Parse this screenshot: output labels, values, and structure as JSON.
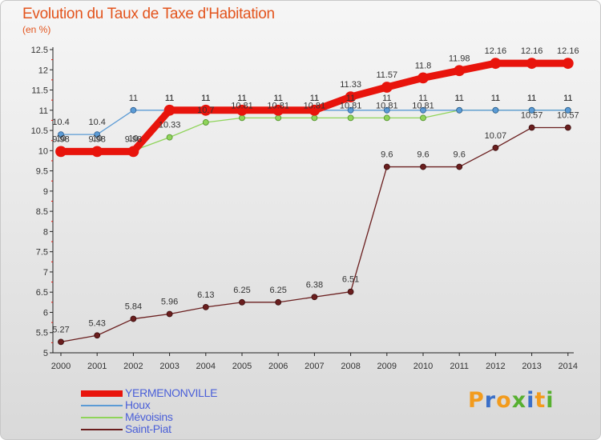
{
  "chart_data": {
    "type": "line",
    "title": "Evolution du Taux de Taxe d'Habitation",
    "subtitle": "(en %)",
    "x": [
      "2000",
      "2001",
      "2002",
      "2003",
      "2004",
      "2005",
      "2006",
      "2007",
      "2008",
      "2009",
      "2010",
      "2011",
      "2012",
      "2013",
      "2014"
    ],
    "ylim": [
      5,
      12.5
    ],
    "yticks": [
      "5",
      "5.5",
      "6",
      "6.5",
      "7",
      "7.5",
      "8",
      "8.5",
      "9",
      "9.5",
      "10",
      "10.5",
      "11",
      "11.5",
      "12",
      "12.5"
    ],
    "grid": false,
    "legend_position": "bottom-left",
    "series": [
      {
        "name": "YERMENONVILLE",
        "color": "#e8140c",
        "values": [
          9.98,
          9.98,
          9.98,
          11,
          11,
          11,
          11,
          11,
          11.33,
          11.57,
          11.8,
          11.98,
          12.16,
          12.16,
          12.16
        ],
        "labels": [
          "9.98",
          "9.98",
          "9.98",
          "11",
          "11",
          "11",
          "11",
          "11",
          "11.33",
          "11.57",
          "11.8",
          "11.98",
          "12.16",
          "12.16",
          "12.16"
        ]
      },
      {
        "name": "Houx",
        "color": "#5b9bd5",
        "values": [
          10.4,
          10.4,
          11,
          11,
          11,
          11,
          11,
          11,
          11,
          11,
          11,
          11,
          11,
          11,
          11
        ],
        "labels": [
          "10.4",
          "10.4",
          "11",
          "11",
          "11",
          "11",
          "11",
          "11",
          "11",
          "11",
          "11",
          "11",
          "11",
          "11",
          "11"
        ]
      },
      {
        "name": "Mévoisins",
        "color": "#8fd45a",
        "values": [
          10,
          10,
          10,
          10.33,
          10.7,
          10.81,
          10.81,
          10.81,
          10.81,
          10.81,
          10.81,
          11,
          11,
          11,
          11
        ],
        "labels": [
          "10",
          "10",
          "10",
          "10.33",
          "10.7",
          "10.81",
          "10.81",
          "10.81",
          "10.81",
          "10.81",
          "10.81",
          "11",
          "11",
          "11",
          "11"
        ]
      },
      {
        "name": "Saint-Piat",
        "color": "#6a1e1e",
        "values": [
          5.27,
          5.43,
          5.84,
          5.96,
          6.13,
          6.25,
          6.25,
          6.38,
          6.51,
          9.6,
          9.6,
          9.6,
          10.07,
          10.57,
          10.57
        ],
        "labels": [
          "5.27",
          "5.43",
          "5.84",
          "5.96",
          "6.13",
          "6.25",
          "6.25",
          "6.38",
          "6.51",
          "9.6",
          "9.6",
          "9.6",
          "10.07",
          "10.57",
          "10.57"
        ]
      }
    ]
  },
  "logo": {
    "text": "Proxiti"
  }
}
